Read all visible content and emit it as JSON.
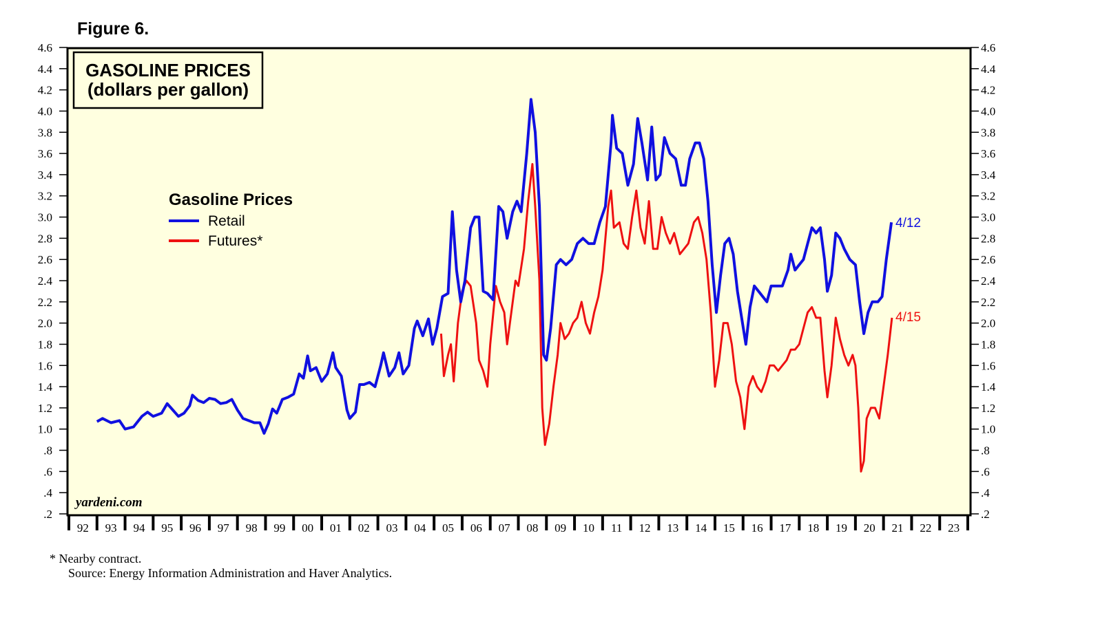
{
  "figure_label": "Figure 6.",
  "footnotes": {
    "note": "*   Nearby contract.",
    "source": "Source: Energy Information Administration and Haver Analytics."
  },
  "colors": {
    "retail": "#1010e0",
    "futures": "#ee1111",
    "plot_bg": "#ffffe0"
  },
  "chart_data": {
    "type": "line",
    "title": "GASOLINE PRICES",
    "subtitle": "(dollars per gallon)",
    "legend_title": "Gasoline Prices",
    "watermark": "yardeni.com",
    "ylim": [
      0.2,
      4.6
    ],
    "yticks": [
      "4.6",
      "4.4",
      "4.2",
      "4.0",
      "3.8",
      "3.6",
      "3.4",
      "3.2",
      "3.0",
      "2.8",
      "2.6",
      "2.4",
      "2.2",
      "2.0",
      "1.8",
      "1.6",
      "1.4",
      "1.2",
      "1.0",
      ".8",
      ".6",
      ".4",
      ".2"
    ],
    "xlim": [
      1992,
      2024
    ],
    "year_labels": [
      "92",
      "93",
      "94",
      "95",
      "96",
      "97",
      "98",
      "99",
      "00",
      "01",
      "02",
      "03",
      "04",
      "05",
      "06",
      "07",
      "08",
      "09",
      "10",
      "11",
      "12",
      "13",
      "14",
      "15",
      "16",
      "17",
      "18",
      "19",
      "20",
      "21",
      "22",
      "23"
    ],
    "series": [
      {
        "name": "Retail",
        "end_label": "4/12",
        "points": [
          [
            1993.0,
            1.07
          ],
          [
            1993.2,
            1.1
          ],
          [
            1993.5,
            1.06
          ],
          [
            1993.8,
            1.08
          ],
          [
            1994.0,
            1.0
          ],
          [
            1994.3,
            1.02
          ],
          [
            1994.6,
            1.12
          ],
          [
            1994.8,
            1.16
          ],
          [
            1995.0,
            1.12
          ],
          [
            1995.3,
            1.15
          ],
          [
            1995.5,
            1.24
          ],
          [
            1995.7,
            1.18
          ],
          [
            1995.9,
            1.12
          ],
          [
            1996.1,
            1.15
          ],
          [
            1996.3,
            1.22
          ],
          [
            1996.4,
            1.32
          ],
          [
            1996.6,
            1.27
          ],
          [
            1996.8,
            1.25
          ],
          [
            1997.0,
            1.29
          ],
          [
            1997.2,
            1.28
          ],
          [
            1997.4,
            1.24
          ],
          [
            1997.6,
            1.25
          ],
          [
            1997.8,
            1.28
          ],
          [
            1998.0,
            1.18
          ],
          [
            1998.2,
            1.1
          ],
          [
            1998.4,
            1.08
          ],
          [
            1998.6,
            1.06
          ],
          [
            1998.8,
            1.06
          ],
          [
            1998.95,
            0.96
          ],
          [
            1999.1,
            1.05
          ],
          [
            1999.25,
            1.19
          ],
          [
            1999.4,
            1.15
          ],
          [
            1999.6,
            1.28
          ],
          [
            1999.8,
            1.3
          ],
          [
            2000.0,
            1.33
          ],
          [
            2000.2,
            1.52
          ],
          [
            2000.35,
            1.48
          ],
          [
            2000.5,
            1.69
          ],
          [
            2000.6,
            1.55
          ],
          [
            2000.8,
            1.58
          ],
          [
            2001.0,
            1.45
          ],
          [
            2001.2,
            1.52
          ],
          [
            2001.4,
            1.72
          ],
          [
            2001.5,
            1.58
          ],
          [
            2001.7,
            1.5
          ],
          [
            2001.9,
            1.18
          ],
          [
            2002.0,
            1.1
          ],
          [
            2002.2,
            1.16
          ],
          [
            2002.35,
            1.42
          ],
          [
            2002.5,
            1.42
          ],
          [
            2002.7,
            1.44
          ],
          [
            2002.9,
            1.4
          ],
          [
            2003.1,
            1.6
          ],
          [
            2003.2,
            1.72
          ],
          [
            2003.4,
            1.5
          ],
          [
            2003.6,
            1.58
          ],
          [
            2003.75,
            1.72
          ],
          [
            2003.9,
            1.52
          ],
          [
            2004.1,
            1.6
          ],
          [
            2004.3,
            1.95
          ],
          [
            2004.4,
            2.02
          ],
          [
            2004.6,
            1.88
          ],
          [
            2004.8,
            2.04
          ],
          [
            2004.95,
            1.8
          ],
          [
            2005.1,
            1.95
          ],
          [
            2005.3,
            2.25
          ],
          [
            2005.5,
            2.28
          ],
          [
            2005.65,
            3.05
          ],
          [
            2005.8,
            2.5
          ],
          [
            2005.95,
            2.2
          ],
          [
            2006.1,
            2.4
          ],
          [
            2006.3,
            2.9
          ],
          [
            2006.45,
            3.0
          ],
          [
            2006.6,
            3.0
          ],
          [
            2006.75,
            2.3
          ],
          [
            2006.9,
            2.28
          ],
          [
            2007.1,
            2.22
          ],
          [
            2007.3,
            3.1
          ],
          [
            2007.45,
            3.05
          ],
          [
            2007.6,
            2.8
          ],
          [
            2007.8,
            3.05
          ],
          [
            2007.95,
            3.15
          ],
          [
            2008.1,
            3.05
          ],
          [
            2008.3,
            3.6
          ],
          [
            2008.45,
            4.11
          ],
          [
            2008.6,
            3.8
          ],
          [
            2008.75,
            3.1
          ],
          [
            2008.9,
            1.7
          ],
          [
            2009.0,
            1.65
          ],
          [
            2009.15,
            1.95
          ],
          [
            2009.35,
            2.55
          ],
          [
            2009.5,
            2.6
          ],
          [
            2009.7,
            2.55
          ],
          [
            2009.9,
            2.6
          ],
          [
            2010.1,
            2.75
          ],
          [
            2010.3,
            2.8
          ],
          [
            2010.5,
            2.75
          ],
          [
            2010.7,
            2.75
          ],
          [
            2010.9,
            2.95
          ],
          [
            2011.1,
            3.1
          ],
          [
            2011.3,
            3.7
          ],
          [
            2011.35,
            3.96
          ],
          [
            2011.5,
            3.65
          ],
          [
            2011.7,
            3.6
          ],
          [
            2011.9,
            3.3
          ],
          [
            2012.1,
            3.5
          ],
          [
            2012.25,
            3.93
          ],
          [
            2012.4,
            3.7
          ],
          [
            2012.6,
            3.35
          ],
          [
            2012.75,
            3.85
          ],
          [
            2012.9,
            3.35
          ],
          [
            2013.05,
            3.4
          ],
          [
            2013.2,
            3.75
          ],
          [
            2013.4,
            3.6
          ],
          [
            2013.6,
            3.55
          ],
          [
            2013.8,
            3.3
          ],
          [
            2013.95,
            3.3
          ],
          [
            2014.1,
            3.55
          ],
          [
            2014.3,
            3.7
          ],
          [
            2014.45,
            3.7
          ],
          [
            2014.6,
            3.55
          ],
          [
            2014.75,
            3.15
          ],
          [
            2014.9,
            2.55
          ],
          [
            2015.05,
            2.1
          ],
          [
            2015.2,
            2.45
          ],
          [
            2015.35,
            2.75
          ],
          [
            2015.5,
            2.8
          ],
          [
            2015.65,
            2.65
          ],
          [
            2015.8,
            2.3
          ],
          [
            2015.95,
            2.05
          ],
          [
            2016.1,
            1.8
          ],
          [
            2016.25,
            2.15
          ],
          [
            2016.4,
            2.35
          ],
          [
            2016.55,
            2.3
          ],
          [
            2016.7,
            2.25
          ],
          [
            2016.85,
            2.2
          ],
          [
            2017.0,
            2.35
          ],
          [
            2017.2,
            2.35
          ],
          [
            2017.4,
            2.35
          ],
          [
            2017.6,
            2.5
          ],
          [
            2017.7,
            2.65
          ],
          [
            2017.85,
            2.5
          ],
          [
            2018.0,
            2.55
          ],
          [
            2018.15,
            2.6
          ],
          [
            2018.3,
            2.75
          ],
          [
            2018.45,
            2.9
          ],
          [
            2018.6,
            2.85
          ],
          [
            2018.75,
            2.9
          ],
          [
            2018.9,
            2.6
          ],
          [
            2019.0,
            2.3
          ],
          [
            2019.15,
            2.45
          ],
          [
            2019.3,
            2.85
          ],
          [
            2019.45,
            2.8
          ],
          [
            2019.6,
            2.7
          ],
          [
            2019.8,
            2.6
          ],
          [
            2020.0,
            2.55
          ],
          [
            2020.15,
            2.2
          ],
          [
            2020.3,
            1.9
          ],
          [
            2020.45,
            2.1
          ],
          [
            2020.6,
            2.2
          ],
          [
            2020.8,
            2.2
          ],
          [
            2020.95,
            2.25
          ],
          [
            2021.1,
            2.6
          ],
          [
            2021.28,
            2.95
          ]
        ]
      },
      {
        "name": "Futures*",
        "end_label": "4/15",
        "points": [
          [
            2005.25,
            1.9
          ],
          [
            2005.35,
            1.5
          ],
          [
            2005.5,
            1.7
          ],
          [
            2005.6,
            1.8
          ],
          [
            2005.7,
            1.45
          ],
          [
            2005.85,
            2.0
          ],
          [
            2006.0,
            2.3
          ],
          [
            2006.15,
            2.4
          ],
          [
            2006.3,
            2.35
          ],
          [
            2006.5,
            2.0
          ],
          [
            2006.6,
            1.65
          ],
          [
            2006.75,
            1.55
          ],
          [
            2006.9,
            1.4
          ],
          [
            2007.0,
            1.8
          ],
          [
            2007.2,
            2.35
          ],
          [
            2007.35,
            2.2
          ],
          [
            2007.5,
            2.1
          ],
          [
            2007.6,
            1.8
          ],
          [
            2007.75,
            2.1
          ],
          [
            2007.9,
            2.4
          ],
          [
            2008.0,
            2.35
          ],
          [
            2008.2,
            2.7
          ],
          [
            2008.35,
            3.15
          ],
          [
            2008.5,
            3.5
          ],
          [
            2008.6,
            3.1
          ],
          [
            2008.75,
            2.4
          ],
          [
            2008.85,
            1.2
          ],
          [
            2008.95,
            0.85
          ],
          [
            2009.1,
            1.05
          ],
          [
            2009.25,
            1.4
          ],
          [
            2009.4,
            1.7
          ],
          [
            2009.5,
            2.0
          ],
          [
            2009.65,
            1.85
          ],
          [
            2009.8,
            1.9
          ],
          [
            2009.95,
            2.0
          ],
          [
            2010.1,
            2.05
          ],
          [
            2010.25,
            2.2
          ],
          [
            2010.4,
            2.0
          ],
          [
            2010.55,
            1.9
          ],
          [
            2010.7,
            2.1
          ],
          [
            2010.85,
            2.25
          ],
          [
            2011.0,
            2.5
          ],
          [
            2011.2,
            3.1
          ],
          [
            2011.3,
            3.25
          ],
          [
            2011.4,
            2.9
          ],
          [
            2011.6,
            2.95
          ],
          [
            2011.75,
            2.75
          ],
          [
            2011.9,
            2.7
          ],
          [
            2012.05,
            3.0
          ],
          [
            2012.2,
            3.25
          ],
          [
            2012.35,
            2.9
          ],
          [
            2012.5,
            2.75
          ],
          [
            2012.65,
            3.15
          ],
          [
            2012.8,
            2.7
          ],
          [
            2012.95,
            2.7
          ],
          [
            2013.1,
            3.0
          ],
          [
            2013.25,
            2.85
          ],
          [
            2013.4,
            2.75
          ],
          [
            2013.55,
            2.85
          ],
          [
            2013.75,
            2.65
          ],
          [
            2013.9,
            2.7
          ],
          [
            2014.05,
            2.75
          ],
          [
            2014.25,
            2.95
          ],
          [
            2014.4,
            3.0
          ],
          [
            2014.55,
            2.85
          ],
          [
            2014.7,
            2.6
          ],
          [
            2014.85,
            2.1
          ],
          [
            2015.0,
            1.4
          ],
          [
            2015.15,
            1.65
          ],
          [
            2015.3,
            2.0
          ],
          [
            2015.45,
            2.0
          ],
          [
            2015.6,
            1.8
          ],
          [
            2015.75,
            1.45
          ],
          [
            2015.9,
            1.3
          ],
          [
            2016.05,
            1.0
          ],
          [
            2016.2,
            1.4
          ],
          [
            2016.35,
            1.5
          ],
          [
            2016.5,
            1.4
          ],
          [
            2016.65,
            1.35
          ],
          [
            2016.8,
            1.45
          ],
          [
            2016.95,
            1.6
          ],
          [
            2017.1,
            1.6
          ],
          [
            2017.25,
            1.55
          ],
          [
            2017.4,
            1.6
          ],
          [
            2017.55,
            1.65
          ],
          [
            2017.7,
            1.75
          ],
          [
            2017.85,
            1.75
          ],
          [
            2018.0,
            1.8
          ],
          [
            2018.15,
            1.95
          ],
          [
            2018.3,
            2.1
          ],
          [
            2018.45,
            2.15
          ],
          [
            2018.6,
            2.05
          ],
          [
            2018.75,
            2.05
          ],
          [
            2018.9,
            1.55
          ],
          [
            2019.0,
            1.3
          ],
          [
            2019.15,
            1.6
          ],
          [
            2019.3,
            2.05
          ],
          [
            2019.45,
            1.85
          ],
          [
            2019.6,
            1.7
          ],
          [
            2019.75,
            1.6
          ],
          [
            2019.9,
            1.7
          ],
          [
            2020.0,
            1.6
          ],
          [
            2020.1,
            1.2
          ],
          [
            2020.2,
            0.6
          ],
          [
            2020.3,
            0.7
          ],
          [
            2020.4,
            1.1
          ],
          [
            2020.55,
            1.2
          ],
          [
            2020.7,
            1.2
          ],
          [
            2020.85,
            1.1
          ],
          [
            2021.0,
            1.4
          ],
          [
            2021.15,
            1.7
          ],
          [
            2021.3,
            2.05
          ]
        ]
      }
    ]
  }
}
